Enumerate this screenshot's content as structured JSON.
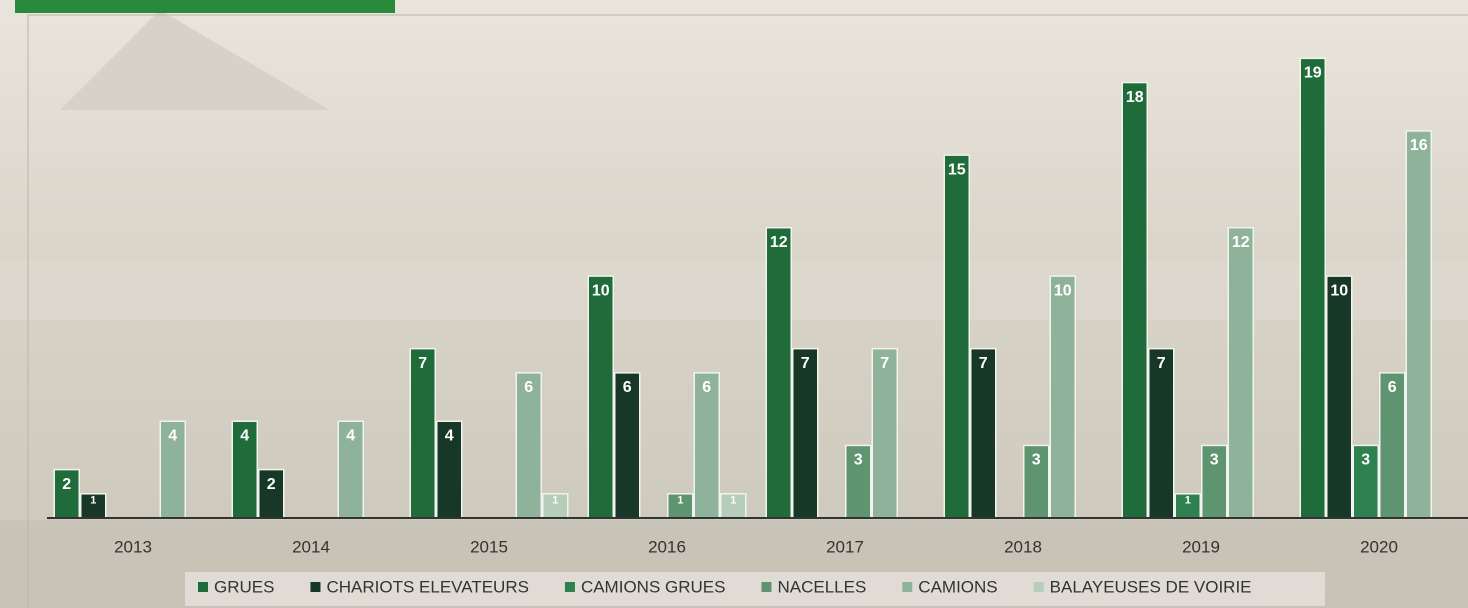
{
  "chart_data": {
    "type": "bar",
    "categories": [
      "2013",
      "2014",
      "2015",
      "2016",
      "2017",
      "2018",
      "2019",
      "2020"
    ],
    "series": [
      {
        "name": "GRUES",
        "color": "#1f6b3a",
        "values": [
          2,
          4,
          7,
          10,
          12,
          15,
          18,
          19
        ]
      },
      {
        "name": "CHARIOTS ELEVATEURS",
        "color": "#173826",
        "values": [
          1,
          2,
          4,
          6,
          7,
          7,
          7,
          10
        ]
      },
      {
        "name": "CAMIONS GRUES",
        "color": "#2e8050",
        "values": [
          null,
          null,
          null,
          null,
          null,
          null,
          1,
          3
        ]
      },
      {
        "name": "NACELLES",
        "color": "#5f9470",
        "values": [
          null,
          null,
          null,
          1,
          3,
          3,
          3,
          6
        ]
      },
      {
        "name": "CAMIONS",
        "color": "#8fb39a",
        "values": [
          4,
          4,
          6,
          6,
          7,
          10,
          12,
          16
        ]
      },
      {
        "name": "BALAYEUSES DE VOIRIE",
        "color": "#b5cdb9",
        "values": [
          null,
          null,
          1,
          1,
          null,
          null,
          null,
          null
        ]
      }
    ],
    "ylim": [
      0,
      21
    ],
    "legend": "bottom"
  }
}
